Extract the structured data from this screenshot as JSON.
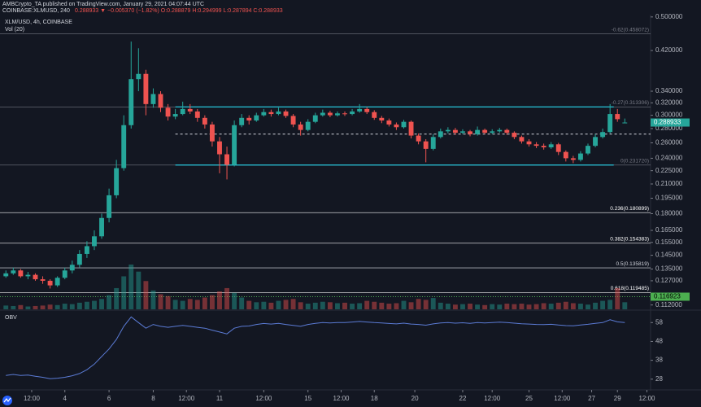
{
  "header": {
    "line1": "AMBCrypto_TA published on TradingView.com, January 29, 2021 04:07:44 UTC",
    "symbol": "COINBASE:XLMUSD, 240",
    "quote": "0.288933 ▼ −0.005370 (−1.82%) O:0.288879 H:0.294999 L:0.287894 C:0.288933"
  },
  "chart_data": {
    "type": "candlestick",
    "title": "XLM/USD, 4h, COINBASE",
    "log_scale": true,
    "up_color": "#26a69a",
    "down_color": "#ef5350",
    "x": [
      -8,
      -7,
      -6,
      -5,
      -4,
      -3,
      -2,
      -1,
      0,
      1,
      2,
      3,
      4,
      5,
      6,
      7,
      8,
      9,
      10,
      11,
      12,
      13,
      14,
      15,
      16,
      17,
      18,
      19,
      20,
      21,
      22,
      23,
      24,
      25,
      26,
      27,
      28,
      29,
      30,
      31,
      32,
      33,
      34,
      35,
      36,
      37,
      38,
      39,
      40,
      41,
      42,
      43,
      44,
      45,
      46,
      47,
      48,
      49,
      50,
      51,
      52,
      53,
      54,
      55,
      56,
      57,
      58,
      59,
      60,
      61,
      62,
      63,
      64,
      65,
      66,
      67,
      68,
      69,
      70,
      71,
      72,
      73,
      74,
      75,
      76
    ],
    "open": [
      0.13,
      0.132,
      0.134,
      0.13,
      0.131,
      0.128,
      0.127,
      0.124,
      0.129,
      0.134,
      0.138,
      0.146,
      0.152,
      0.16,
      0.176,
      0.198,
      0.228,
      0.285,
      0.362,
      0.372,
      0.318,
      0.335,
      0.312,
      0.298,
      0.302,
      0.31,
      0.306,
      0.296,
      0.286,
      0.262,
      0.245,
      0.232,
      0.285,
      0.296,
      0.292,
      0.3,
      0.305,
      0.302,
      0.306,
      0.299,
      0.286,
      0.278,
      0.29,
      0.3,
      0.304,
      0.3,
      0.303,
      0.302,
      0.306,
      0.31,
      0.305,
      0.296,
      0.292,
      0.286,
      0.282,
      0.29,
      0.27,
      0.262,
      0.252,
      0.268,
      0.276,
      0.278,
      0.274,
      0.276,
      0.272,
      0.278,
      0.274,
      0.276,
      0.278,
      0.274,
      0.268,
      0.262,
      0.258,
      0.256,
      0.254,
      0.258,
      0.248,
      0.24,
      0.238,
      0.246,
      0.256,
      0.268,
      0.275,
      0.302,
      0.288879
    ],
    "high": [
      0.134,
      0.136,
      0.135,
      0.133,
      0.132,
      0.13,
      0.128,
      0.13,
      0.136,
      0.141,
      0.149,
      0.156,
      0.165,
      0.18,
      0.205,
      0.238,
      0.3,
      0.44,
      0.425,
      0.38,
      0.345,
      0.34,
      0.318,
      0.31,
      0.322,
      0.318,
      0.31,
      0.3,
      0.29,
      0.268,
      0.255,
      0.292,
      0.302,
      0.3,
      0.304,
      0.31,
      0.309,
      0.312,
      0.309,
      0.302,
      0.29,
      0.294,
      0.304,
      0.309,
      0.307,
      0.306,
      0.306,
      0.31,
      0.318,
      0.313,
      0.308,
      0.299,
      0.295,
      0.289,
      0.293,
      0.292,
      0.273,
      0.265,
      0.272,
      0.28,
      0.282,
      0.281,
      0.279,
      0.278,
      0.283,
      0.28,
      0.279,
      0.281,
      0.28,
      0.276,
      0.27,
      0.265,
      0.261,
      0.259,
      0.261,
      0.26,
      0.25,
      0.243,
      0.249,
      0.259,
      0.272,
      0.28,
      0.318,
      0.31,
      0.294999
    ],
    "low": [
      0.129,
      0.131,
      0.129,
      0.128,
      0.127,
      0.125,
      0.122,
      0.123,
      0.128,
      0.132,
      0.136,
      0.143,
      0.149,
      0.158,
      0.172,
      0.195,
      0.225,
      0.28,
      0.34,
      0.3,
      0.312,
      0.305,
      0.292,
      0.294,
      0.3,
      0.302,
      0.29,
      0.28,
      0.255,
      0.222,
      0.215,
      0.23,
      0.282,
      0.286,
      0.29,
      0.298,
      0.298,
      0.3,
      0.296,
      0.282,
      0.27,
      0.276,
      0.288,
      0.298,
      0.297,
      0.298,
      0.299,
      0.3,
      0.304,
      0.302,
      0.293,
      0.288,
      0.283,
      0.278,
      0.28,
      0.266,
      0.258,
      0.235,
      0.25,
      0.266,
      0.273,
      0.271,
      0.272,
      0.269,
      0.27,
      0.272,
      0.272,
      0.274,
      0.271,
      0.265,
      0.259,
      0.255,
      0.253,
      0.251,
      0.252,
      0.244,
      0.236,
      0.234,
      0.236,
      0.244,
      0.254,
      0.266,
      0.273,
      0.29,
      0.287894
    ],
    "close": [
      0.132,
      0.134,
      0.13,
      0.131,
      0.128,
      0.127,
      0.124,
      0.129,
      0.134,
      0.138,
      0.146,
      0.152,
      0.16,
      0.176,
      0.198,
      0.228,
      0.285,
      0.362,
      0.372,
      0.318,
      0.335,
      0.312,
      0.298,
      0.302,
      0.31,
      0.306,
      0.296,
      0.286,
      0.262,
      0.245,
      0.232,
      0.285,
      0.296,
      0.292,
      0.3,
      0.305,
      0.302,
      0.306,
      0.299,
      0.286,
      0.278,
      0.29,
      0.3,
      0.304,
      0.3,
      0.303,
      0.302,
      0.306,
      0.31,
      0.305,
      0.296,
      0.292,
      0.286,
      0.282,
      0.29,
      0.27,
      0.262,
      0.252,
      0.268,
      0.276,
      0.278,
      0.274,
      0.276,
      0.272,
      0.278,
      0.274,
      0.276,
      0.278,
      0.274,
      0.268,
      0.262,
      0.258,
      0.256,
      0.254,
      0.258,
      0.248,
      0.24,
      0.238,
      0.246,
      0.256,
      0.268,
      0.275,
      0.302,
      0.294,
      0.288933
    ],
    "volume": {
      "name": "Vol (20)",
      "values": [
        8,
        7,
        9,
        6,
        7,
        8,
        10,
        9,
        12,
        11,
        14,
        16,
        18,
        22,
        30,
        45,
        70,
        95,
        80,
        60,
        40,
        32,
        28,
        20,
        18,
        22,
        20,
        25,
        30,
        38,
        45,
        35,
        25,
        18,
        15,
        16,
        14,
        18,
        20,
        22,
        15,
        12,
        14,
        16,
        15,
        13,
        14,
        12,
        13,
        18,
        16,
        14,
        12,
        13,
        18,
        15,
        22,
        20,
        24,
        14,
        12,
        10,
        11,
        12,
        10,
        9,
        11,
        10,
        12,
        11,
        12,
        10,
        11,
        13,
        12,
        14,
        16,
        13,
        12,
        10,
        14,
        18,
        20,
        45,
        15
      ]
    },
    "xlim": [
      -8.8,
      79.5
    ],
    "xticks": [
      {
        "value": -4.5,
        "label": "12:00"
      },
      {
        "value": 0,
        "label": "4"
      },
      {
        "value": 6,
        "label": "6"
      },
      {
        "value": 12,
        "label": "8"
      },
      {
        "value": 16.5,
        "label": "12:00"
      },
      {
        "value": 21,
        "label": "11"
      },
      {
        "value": 27,
        "label": "12:00"
      },
      {
        "value": 33,
        "label": "15"
      },
      {
        "value": 37.5,
        "label": "12:00"
      },
      {
        "value": 42,
        "label": "18"
      },
      {
        "value": 47.5,
        "label": "20"
      },
      {
        "value": 54,
        "label": "22"
      },
      {
        "value": 58,
        "label": "12:00"
      },
      {
        "value": 63,
        "label": "25"
      },
      {
        "value": 67.5,
        "label": "12:00"
      },
      {
        "value": 71.5,
        "label": "27"
      },
      {
        "value": 75,
        "label": "29"
      },
      {
        "value": 79,
        "label": "12:00"
      }
    ],
    "ylim": [
      0.1095,
      0.506
    ],
    "yticks": [
      {
        "value": 0.5,
        "label": "0.500000"
      },
      {
        "value": 0.42,
        "label": "0.420000"
      },
      {
        "value": 0.34,
        "label": "0.340000"
      },
      {
        "value": 0.32,
        "label": "0.320000"
      },
      {
        "value": 0.3,
        "label": "0.300000"
      },
      {
        "value": 0.28,
        "label": "0.280000"
      },
      {
        "value": 0.26,
        "label": "0.260000"
      },
      {
        "value": 0.24,
        "label": "0.240000"
      },
      {
        "value": 0.225,
        "label": "0.225000"
      },
      {
        "value": 0.21,
        "label": "0.210000"
      },
      {
        "value": 0.195,
        "label": "0.195000"
      },
      {
        "value": 0.18,
        "label": "0.180000"
      },
      {
        "value": 0.165,
        "label": "0.165000"
      },
      {
        "value": 0.155,
        "label": "0.155000"
      },
      {
        "value": 0.145,
        "label": "0.145000"
      },
      {
        "value": 0.135,
        "label": "0.135000"
      },
      {
        "value": 0.127,
        "label": "0.127000"
      },
      {
        "value": 0.112,
        "label": "0.112000"
      }
    ],
    "fib_levels": [
      {
        "value": 0.458072,
        "label": "-0.62(0.458072)",
        "color": "#787b86"
      },
      {
        "value": 0.313306,
        "label": "-0.27(0.313306)",
        "color": "#787b86"
      },
      {
        "value": 0.23172,
        "label": "0(0.231720)",
        "color": "#787b86"
      },
      {
        "value": 0.180899,
        "label": "0.236(0.180899)",
        "color": "#ffffff"
      },
      {
        "value": 0.154383,
        "label": "0.382(0.154383)",
        "color": "#ffffff"
      },
      {
        "value": 0.135819,
        "label": "0.5(0.135819)",
        "color": "#d1d4dc"
      },
      {
        "value": 0.119485,
        "label": "0.618(0.119485)",
        "color": "#ffffff"
      }
    ],
    "channel": {
      "top": 0.3133,
      "bottom": 0.2317,
      "x": [
        15,
        74.5
      ],
      "mid": 0.272,
      "mid_x": [
        15,
        79.5
      ],
      "color": "#26c6da"
    },
    "marker_line": {
      "value": 0.116923,
      "color": "#4caf50"
    },
    "last_price": 0.288933,
    "obv": {
      "name": "OBV",
      "color": "#5b7bd5",
      "ylim": [
        23.6,
        63.3
      ],
      "yticks": [
        58,
        48,
        38,
        28
      ],
      "values": [
        30,
        30.5,
        30,
        30.2,
        29.5,
        29,
        28.2,
        28.5,
        29,
        29.8,
        31,
        33,
        36,
        40,
        44,
        49,
        56,
        61,
        58,
        55,
        57,
        56,
        55.5,
        56,
        56.5,
        56,
        55.5,
        55,
        54,
        53,
        52,
        55,
        56,
        56.2,
        57,
        57.5,
        57.2,
        57.6,
        57,
        56.5,
        56,
        57,
        57.6,
        58,
        57.8,
        58,
        58,
        58.3,
        58.6,
        58.3,
        58,
        57.8,
        57.5,
        57.3,
        57.7,
        57.2,
        57,
        56.6,
        57.3,
        57.8,
        58,
        57.7,
        57.9,
        57.6,
        58,
        57.8,
        58,
        58.2,
        58,
        57.7,
        57.4,
        57.2,
        57,
        56.9,
        57.1,
        56.7,
        56.4,
        56.3,
        56.7,
        57.1,
        57.6,
        58,
        59.5,
        58.4,
        58
      ]
    }
  }
}
